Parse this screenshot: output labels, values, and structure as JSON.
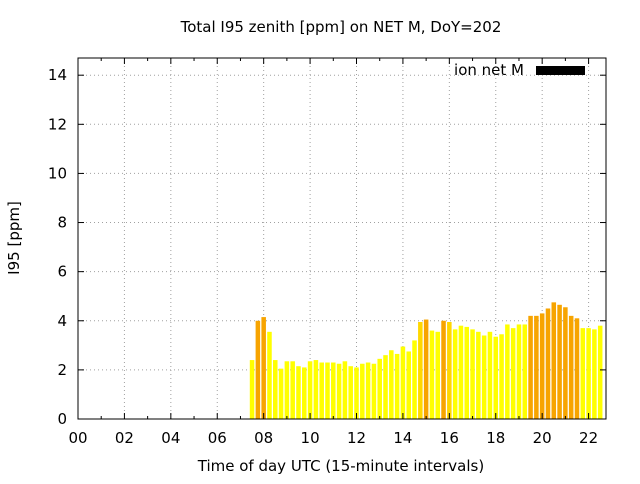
{
  "chart_data": {
    "type": "bar",
    "title": "Total I95 zenith [ppm] on NET M, DoY=202",
    "xlabel": "Time of day UTC (15-minute intervals)",
    "ylabel": "I95 [ppm]",
    "xlim": [
      0,
      22.75
    ],
    "ylim": [
      0,
      14.7
    ],
    "x_ticks": [
      "00",
      "02",
      "04",
      "06",
      "08",
      "10",
      "12",
      "14",
      "16",
      "18",
      "20",
      "22"
    ],
    "y_ticks": [
      "0",
      "2",
      "4",
      "6",
      "8",
      "10",
      "12",
      "14"
    ],
    "grid": true,
    "legend": {
      "label": "ion net M",
      "color": "#000000",
      "placement": "top-right"
    },
    "colors": {
      "low": "#ffff00",
      "mid": "#ffd700",
      "high": "#f7a400"
    },
    "series": [
      {
        "x": [
          7.5,
          7.75,
          8.0,
          8.25,
          8.5,
          8.75,
          9.0,
          9.25,
          9.5,
          9.75,
          10.0,
          10.25,
          10.5,
          10.75,
          11.0,
          11.25,
          11.5,
          11.75,
          12.0,
          12.25,
          12.5,
          12.75,
          13.0,
          13.25,
          13.5,
          13.75,
          14.0,
          14.25,
          14.5,
          14.75,
          15.0,
          15.25,
          15.5,
          15.75,
          16.0,
          16.25,
          16.5,
          16.75,
          17.0,
          17.25,
          17.5,
          17.75,
          18.0,
          18.25,
          18.5,
          18.75,
          19.0,
          19.25,
          19.5,
          19.75,
          20.0,
          20.25,
          20.5,
          20.75,
          21.0,
          21.25,
          21.5,
          21.75,
          22.0,
          22.25,
          22.5
        ],
        "values": [
          2.4,
          4.0,
          4.15,
          3.55,
          2.4,
          2.05,
          2.35,
          2.35,
          2.15,
          2.1,
          2.35,
          2.4,
          2.3,
          2.3,
          2.3,
          2.25,
          2.35,
          2.15,
          2.1,
          2.25,
          2.3,
          2.25,
          2.45,
          2.6,
          2.8,
          2.65,
          2.95,
          2.75,
          3.2,
          3.95,
          4.05,
          3.6,
          3.55,
          4.0,
          3.95,
          3.65,
          3.8,
          3.75,
          3.65,
          3.55,
          3.4,
          3.55,
          3.35,
          3.45,
          3.85,
          3.7,
          3.85,
          3.85,
          4.2,
          4.2,
          4.3,
          4.5,
          4.75,
          4.65,
          4.55,
          4.2,
          4.1,
          3.7,
          3.7,
          3.65,
          3.8
        ]
      }
    ]
  }
}
